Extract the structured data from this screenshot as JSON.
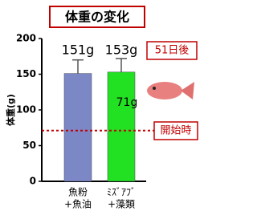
{
  "chart_data": {
    "type": "bar",
    "title": "体重の変化",
    "y_label": "体重(g)",
    "categories": [
      [
        "魚粉",
        "+魚油"
      ],
      [
        "ﾐｽﾞｱﾌﾞ",
        "+藻類"
      ]
    ],
    "values": [
      151,
      153
    ],
    "value_labels": [
      "151g",
      "153g"
    ],
    "errors": [
      19,
      19
    ],
    "colors": [
      "#7c87c6",
      "#22e022"
    ],
    "ylim": [
      0,
      200
    ],
    "yticks": [
      0,
      50,
      100,
      150,
      200
    ],
    "reference_line": {
      "value": 71,
      "label": "71g",
      "color": "#c00000"
    },
    "annotations": [
      "51日後",
      "開始時"
    ]
  }
}
